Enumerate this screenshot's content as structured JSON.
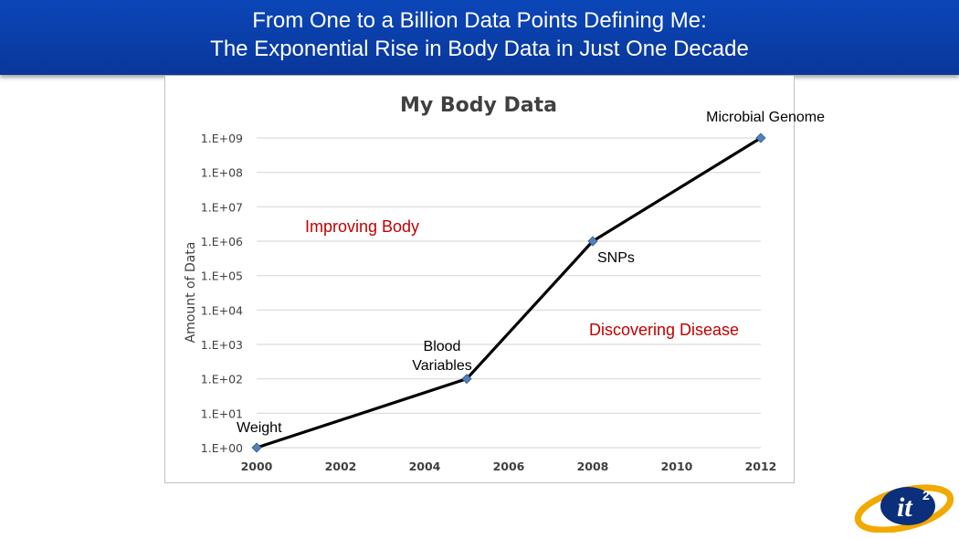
{
  "slide": {
    "title_line1": "From One to a Billion Data Points Defining Me:",
    "title_line2": "The Exponential Rise in Body Data in Just One Decade",
    "logo_text": "it",
    "logo_superscript": "2"
  },
  "colors": {
    "title_bar": "#0b3ea8",
    "line": "#000000",
    "marker": "#4f81bd",
    "grid": "#d9d9d9",
    "red_annotation": "#c00000"
  },
  "chart_data": {
    "type": "line",
    "title": "My Body Data",
    "xlabel": "",
    "ylabel": "Amount of Data",
    "y_scale": "log10",
    "ylim": [
      1,
      1000000000
    ],
    "xlim": [
      2000,
      2012
    ],
    "grid": true,
    "x_ticks": [
      {
        "value": 2000,
        "label": "2000"
      },
      {
        "value": 2002,
        "label": "2002"
      },
      {
        "value": 2004,
        "label": "2004"
      },
      {
        "value": 2006,
        "label": "2006"
      },
      {
        "value": 2008,
        "label": "2008"
      },
      {
        "value": 2010,
        "label": "2010"
      },
      {
        "value": 2012,
        "label": "2012"
      }
    ],
    "y_ticks": [
      {
        "exp": 0,
        "label": "1.E+00"
      },
      {
        "exp": 1,
        "label": "1.E+01"
      },
      {
        "exp": 2,
        "label": "1.E+02"
      },
      {
        "exp": 3,
        "label": "1.E+03"
      },
      {
        "exp": 4,
        "label": "1.E+04"
      },
      {
        "exp": 5,
        "label": "1.E+05"
      },
      {
        "exp": 6,
        "label": "1.E+06"
      },
      {
        "exp": 7,
        "label": "1.E+07"
      },
      {
        "exp": 8,
        "label": "1.E+08"
      },
      {
        "exp": 9,
        "label": "1.E+09"
      }
    ],
    "series": [
      {
        "name": "My Body Data",
        "points": [
          {
            "x": 2000,
            "y": 1,
            "label": "Weight"
          },
          {
            "x": 2005,
            "y": 100,
            "label": "Blood Variables"
          },
          {
            "x": 2008,
            "y": 1000000,
            "label": "SNPs"
          },
          {
            "x": 2012,
            "y": 1000000000,
            "label": "Microbial Genome"
          }
        ]
      }
    ],
    "annotations": [
      {
        "text": "Improving Body",
        "color": "#c00000"
      },
      {
        "text": "Discovering Disease",
        "color": "#c00000"
      }
    ]
  }
}
